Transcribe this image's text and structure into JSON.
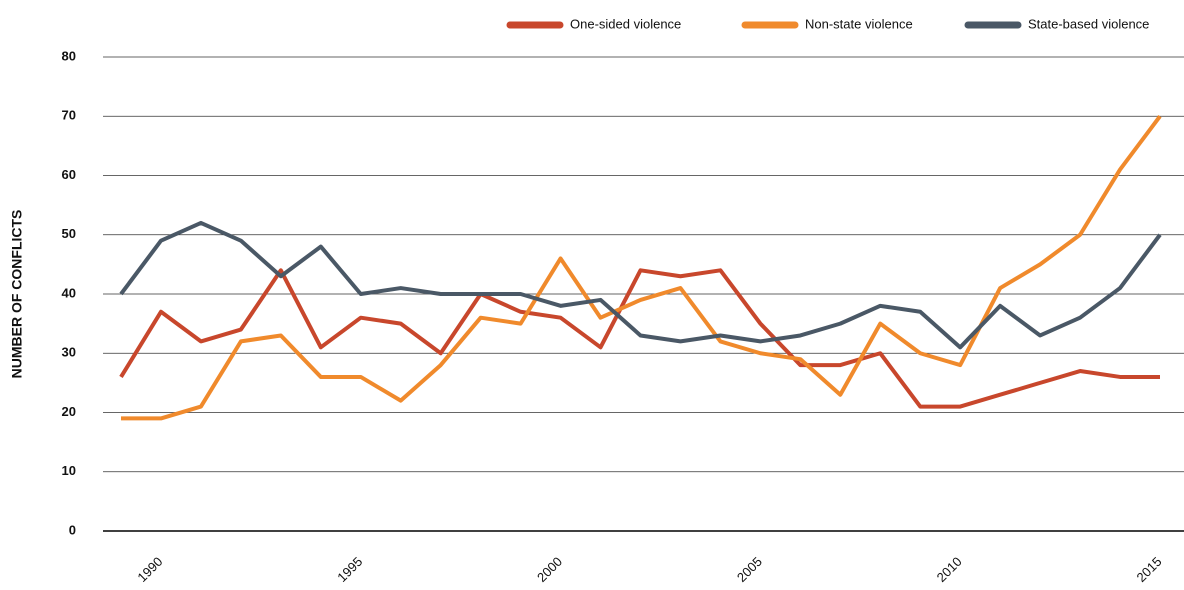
{
  "chart_data": {
    "type": "line",
    "y_label": "NUMBER OF CONFLICTS",
    "x": [
      1989,
      1990,
      1991,
      1992,
      1993,
      1994,
      1995,
      1996,
      1997,
      1998,
      1999,
      2000,
      2001,
      2002,
      2003,
      2004,
      2005,
      2006,
      2007,
      2008,
      2009,
      2010,
      2011,
      2012,
      2013,
      2014,
      2015
    ],
    "series": [
      {
        "name": "One-sided violence",
        "color": "#c8472c",
        "values": [
          26,
          37,
          32,
          34,
          44,
          31,
          36,
          35,
          30,
          40,
          37,
          36,
          31,
          44,
          43,
          44,
          35,
          28,
          28,
          30,
          21,
          21,
          23,
          25,
          27,
          26,
          26
        ]
      },
      {
        "name": "Non-state violence",
        "color": "#f08a2c",
        "values": [
          19,
          19,
          21,
          32,
          33,
          26,
          26,
          22,
          28,
          36,
          35,
          46,
          36,
          39,
          41,
          32,
          30,
          29,
          23,
          35,
          30,
          28,
          41,
          45,
          50,
          61,
          70
        ]
      },
      {
        "name": "State-based violence",
        "color": "#4a5866",
        "values": [
          40,
          49,
          52,
          49,
          43,
          48,
          40,
          41,
          40,
          40,
          40,
          38,
          39,
          33,
          32,
          33,
          32,
          33,
          35,
          38,
          37,
          31,
          38,
          33,
          36,
          41,
          50
        ]
      }
    ],
    "xlim": [
      1989,
      2015
    ],
    "xticks": [
      1990,
      1995,
      2000,
      2005,
      2010,
      2015
    ],
    "ylim": [
      0,
      80
    ],
    "yticks": [
      0,
      10,
      20,
      30,
      40,
      50,
      60,
      70,
      80
    ],
    "grid": true,
    "legend": "top-right"
  }
}
